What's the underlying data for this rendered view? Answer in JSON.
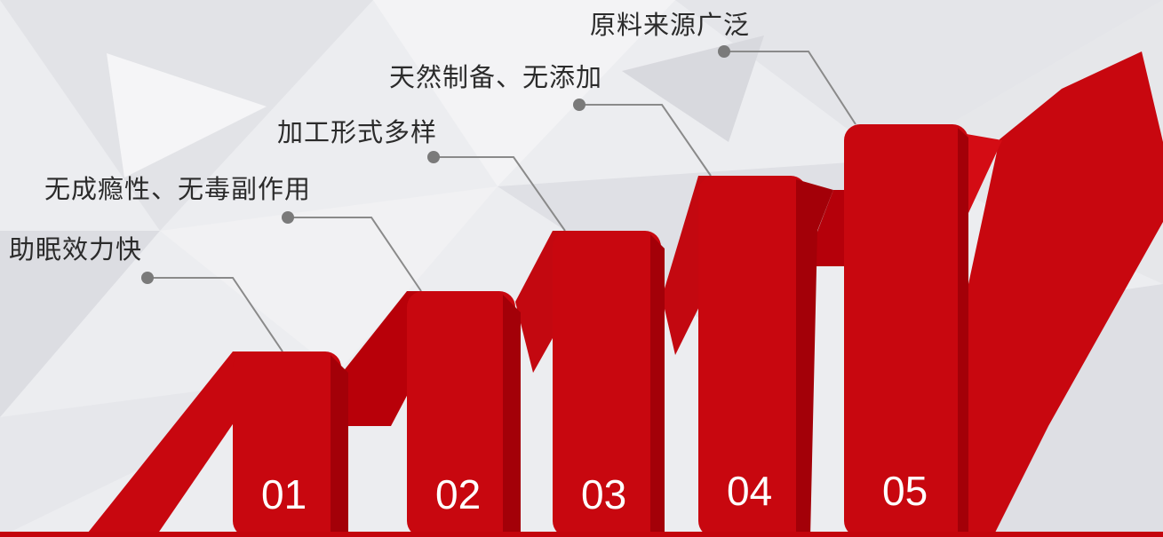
{
  "steps": [
    {
      "number": "01",
      "label": "助眠效力快"
    },
    {
      "number": "02",
      "label": "无成瘾性、无毒副作用"
    },
    {
      "number": "03",
      "label": "加工形式多样"
    },
    {
      "number": "04",
      "label": "天然制备、无添加"
    },
    {
      "number": "05",
      "label": "原料来源广泛"
    }
  ],
  "colors": {
    "accent": "#c8070f",
    "accent_dark": "#a30008",
    "connector": "#8a8a8a",
    "dot": "#7a7a7a",
    "text": "#2b2b2b",
    "number": "#ffffff"
  }
}
